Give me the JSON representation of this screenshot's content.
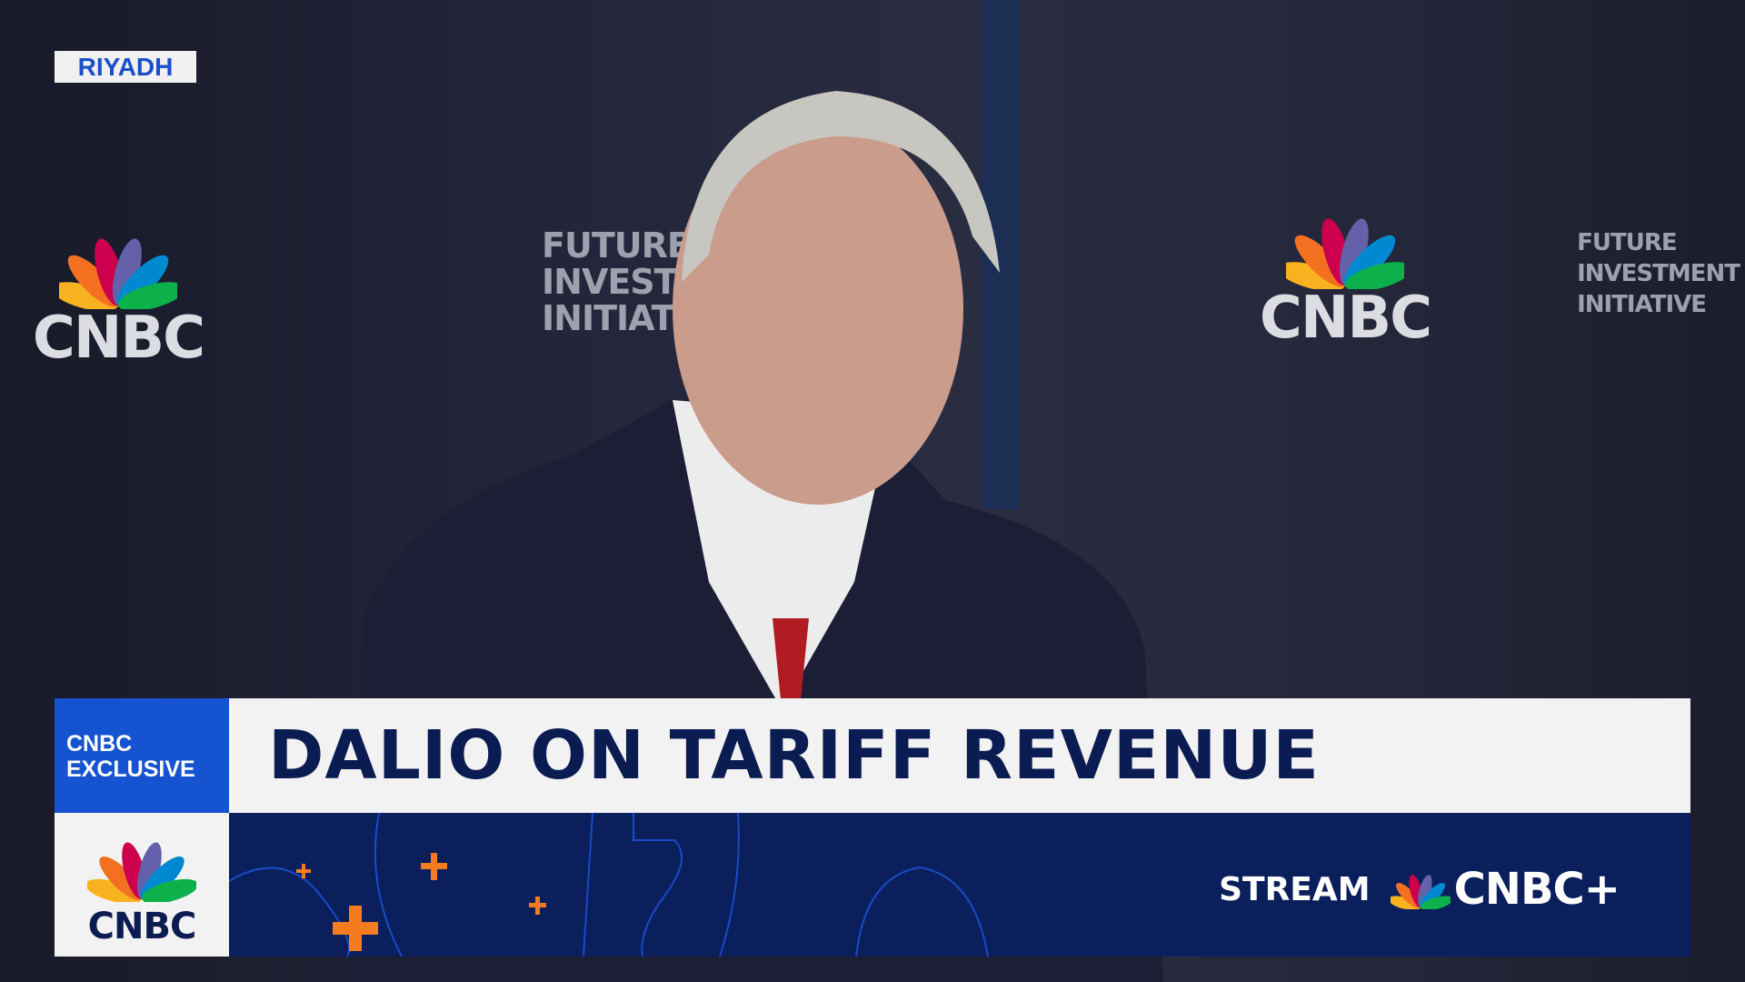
{
  "location_tag": "RIYADH",
  "backdrop": {
    "network_logo": "CNBC",
    "event_logo": [
      "FUTURE",
      "INVESTMENT",
      "INITIATIVE"
    ]
  },
  "lower_third": {
    "badge": [
      "CNBC",
      "EXCLUSIVE"
    ],
    "headline": "DALIO ON TARIFF REVENUE",
    "network_logo": "CNBC",
    "promo": {
      "prefix": "STREAM",
      "brand": "CNBC+"
    }
  },
  "colors": {
    "badge_blue": "#1553d1",
    "navy": "#0a1f5b",
    "headline_text": "#0b1c52",
    "accent_orange": "#f47b20"
  },
  "peacock_colors": [
    "#f9b21f",
    "#f37021",
    "#cc004c",
    "#6460aa",
    "#0089d0",
    "#0db14b"
  ]
}
